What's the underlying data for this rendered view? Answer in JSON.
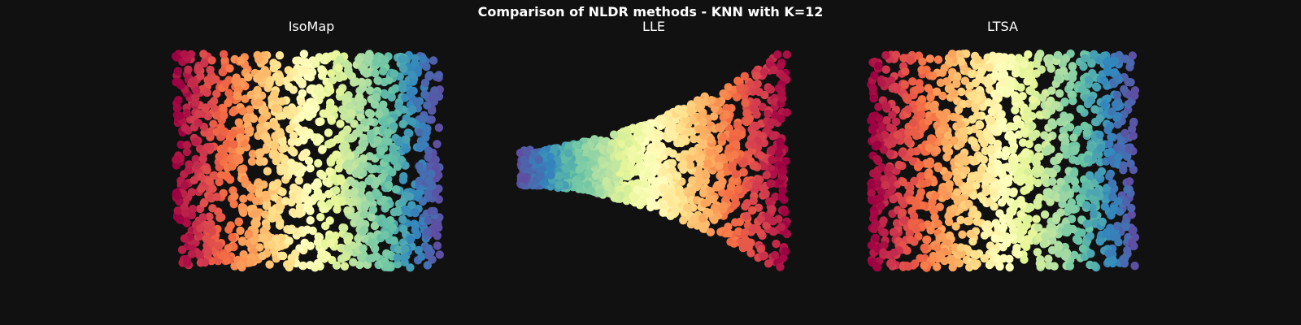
{
  "suptitle": "Comparison of NLDR methods - KNN with K=12",
  "colors": {
    "background": "#111111",
    "text": "#ffffff",
    "colormap": "Spectral"
  },
  "chart_data": [
    {
      "type": "scatter",
      "title": "IsoMap",
      "xlabel": "",
      "ylabel": "",
      "axis": "off",
      "grid": false,
      "shape": "rectangle",
      "xlim": [
        -1,
        1
      ],
      "ylim": [
        -1,
        1
      ],
      "color_gradient": "left-red to right-violet",
      "n_points": 1500
    },
    {
      "type": "scatter",
      "title": "LLE",
      "xlabel": "",
      "ylabel": "",
      "axis": "off",
      "grid": false,
      "shape": "wedge",
      "xlim": [
        -1,
        1
      ],
      "ylim": [
        -1,
        1
      ],
      "color_gradient": "left-violet to right-red",
      "n_points": 1500
    },
    {
      "type": "scatter",
      "title": "LTSA",
      "xlabel": "",
      "ylabel": "",
      "axis": "off",
      "grid": false,
      "shape": "rectangle",
      "xlim": [
        -1,
        1
      ],
      "ylim": [
        -1,
        1
      ],
      "color_gradient": "left-red to right-violet",
      "n_points": 1500
    }
  ]
}
